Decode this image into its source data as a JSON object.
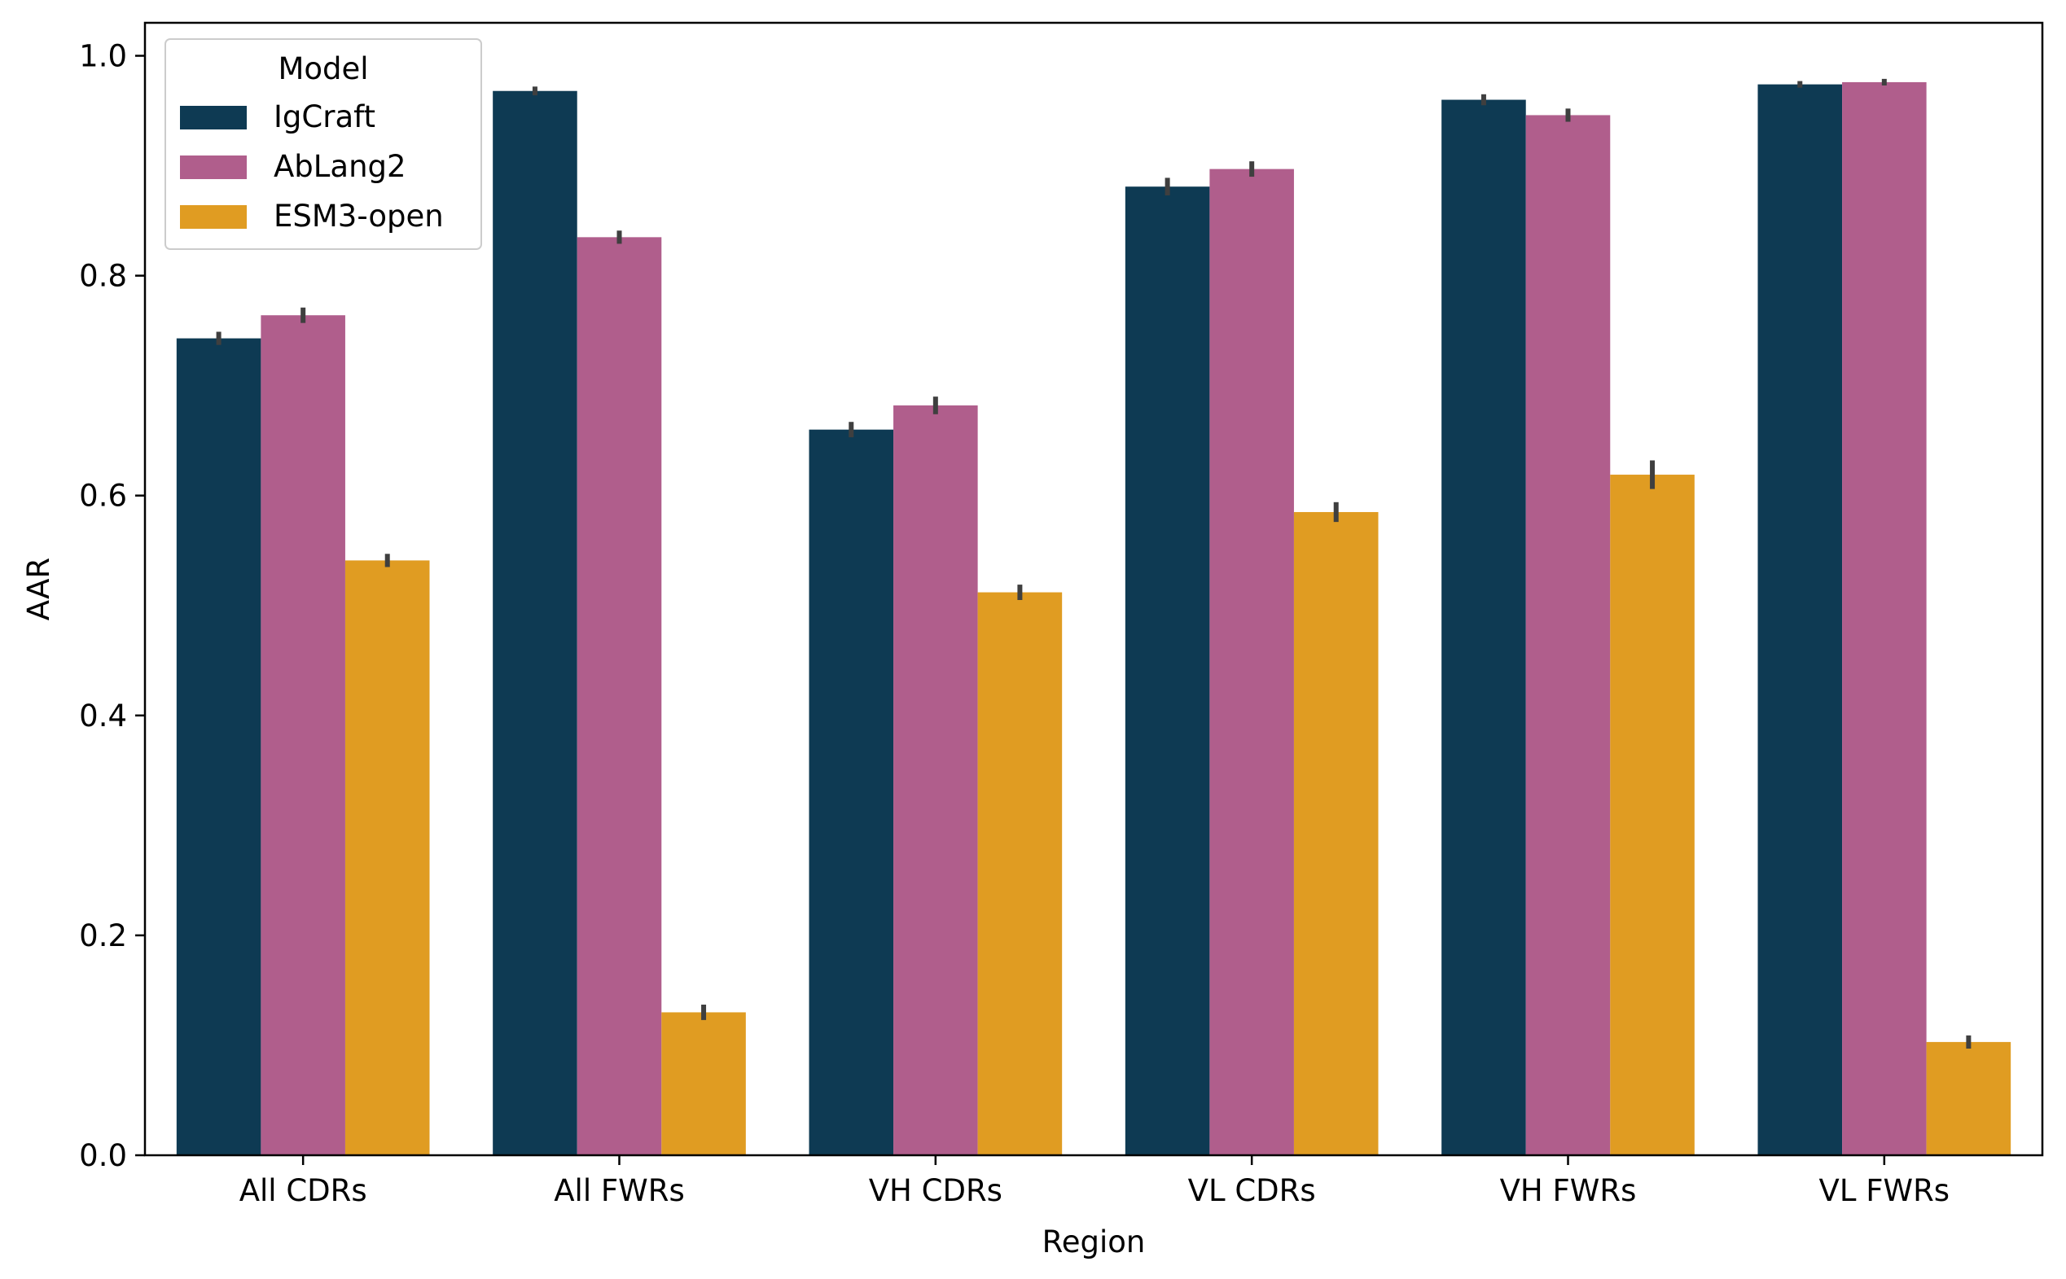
{
  "chart_data": {
    "type": "bar",
    "title": "",
    "xlabel": "Region",
    "ylabel": "AAR",
    "ylim": [
      0,
      1.03
    ],
    "yticks": [
      0.0,
      0.2,
      0.4,
      0.6,
      0.8,
      1.0
    ],
    "ytick_labels": [
      "0.0",
      "0.2",
      "0.4",
      "0.6",
      "0.8",
      "1.0"
    ],
    "grid": false,
    "categories": [
      "All CDRs",
      "All FWRs",
      "VH CDRs",
      "VL CDRs",
      "VH FWRs",
      "VL FWRs"
    ],
    "legend": {
      "title": "Model",
      "placement": "top-left"
    },
    "series": [
      {
        "name": "IgCraft",
        "color": "#0e3a53",
        "values": [
          0.743,
          0.968,
          0.66,
          0.881,
          0.96,
          0.974
        ],
        "errors": [
          0.006,
          0.004,
          0.007,
          0.008,
          0.005,
          0.003
        ]
      },
      {
        "name": "AbLang2",
        "color": "#b05e8c",
        "values": [
          0.764,
          0.835,
          0.682,
          0.897,
          0.946,
          0.976
        ],
        "errors": [
          0.007,
          0.006,
          0.008,
          0.007,
          0.006,
          0.003
        ]
      },
      {
        "name": "ESM3-open",
        "color": "#e09c22",
        "values": [
          0.541,
          0.13,
          0.512,
          0.585,
          0.619,
          0.103
        ],
        "errors": [
          0.006,
          0.007,
          0.007,
          0.009,
          0.013,
          0.006
        ]
      }
    ],
    "error_bar_color": "#3f3f3f"
  }
}
